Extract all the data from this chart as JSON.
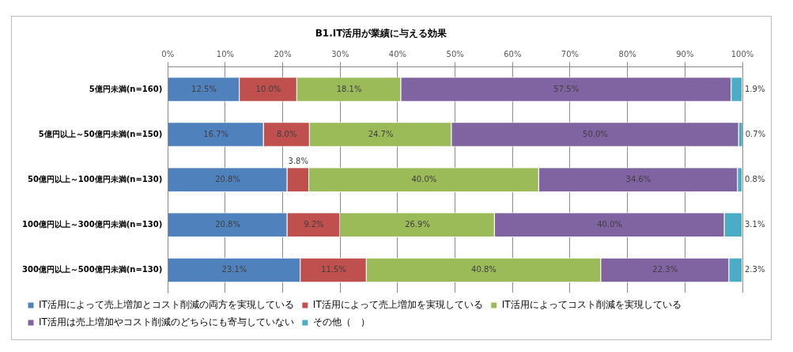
{
  "chart_data": {
    "type": "bar",
    "orientation": "horizontal",
    "stacked": true,
    "title": "B1.IT活用が業績に与える効果",
    "categories": [
      "5億円未満(n=160)",
      "5億円以上～50億円未満(n=150)",
      "50億円以上～100億円未満(n=130)",
      "100億円以上～300億円未満(n=130)",
      "300億円以上～500億円未満(n=130)"
    ],
    "series": [
      {
        "name": "IT活用によって売上増加とコスト削減の両方を実現している",
        "color": "#4f81bd",
        "values": [
          12.5,
          16.7,
          20.8,
          20.8,
          23.1
        ],
        "value_labels": [
          "12.5%",
          "16.7%",
          "20.8%",
          "20.8%",
          "23.1%"
        ]
      },
      {
        "name": "IT活用によって売上増加を実現している",
        "color": "#c0504d",
        "values": [
          10.0,
          8.0,
          3.8,
          9.2,
          11.5
        ],
        "value_labels": [
          "10.0%",
          "8.0%",
          "3.8%",
          "9.2%",
          "11.5%"
        ]
      },
      {
        "name": "IT活用によってコスト削減を実現している",
        "color": "#9bbb59",
        "values": [
          18.1,
          24.7,
          40.0,
          26.9,
          40.8
        ],
        "value_labels": [
          "18.1%",
          "24.7%",
          "40.0%",
          "26.9%",
          "40.8%"
        ]
      },
      {
        "name": "IT活用は売上増加やコスト削減のどちらにも寄与していない",
        "color": "#8064a2",
        "values": [
          57.5,
          50.0,
          34.6,
          40.0,
          22.3
        ],
        "value_labels": [
          "57.5%",
          "50.0%",
          "34.6%",
          "40.0%",
          "22.3%"
        ]
      },
      {
        "name": "その他（　）",
        "color": "#4bacc6",
        "values": [
          1.9,
          0.7,
          0.8,
          3.1,
          2.3
        ],
        "value_labels": [
          "1.9%",
          "0.7%",
          "0.8%",
          "3.1%",
          "2.3%"
        ]
      }
    ],
    "xlim": [
      0,
      100
    ],
    "xticks": [
      {
        "value": 0,
        "label": "0%"
      },
      {
        "value": 10,
        "label": "10%"
      },
      {
        "value": 20,
        "label": "20%"
      },
      {
        "value": 30,
        "label": "30%"
      },
      {
        "value": 40,
        "label": "40%"
      },
      {
        "value": 50,
        "label": "50%"
      },
      {
        "value": 60,
        "label": "60%"
      },
      {
        "value": 70,
        "label": "70%"
      },
      {
        "value": 80,
        "label": "80%"
      },
      {
        "value": 90,
        "label": "90%"
      },
      {
        "value": 100,
        "label": "100%"
      }
    ],
    "grid": "x",
    "legend": "bottom"
  }
}
